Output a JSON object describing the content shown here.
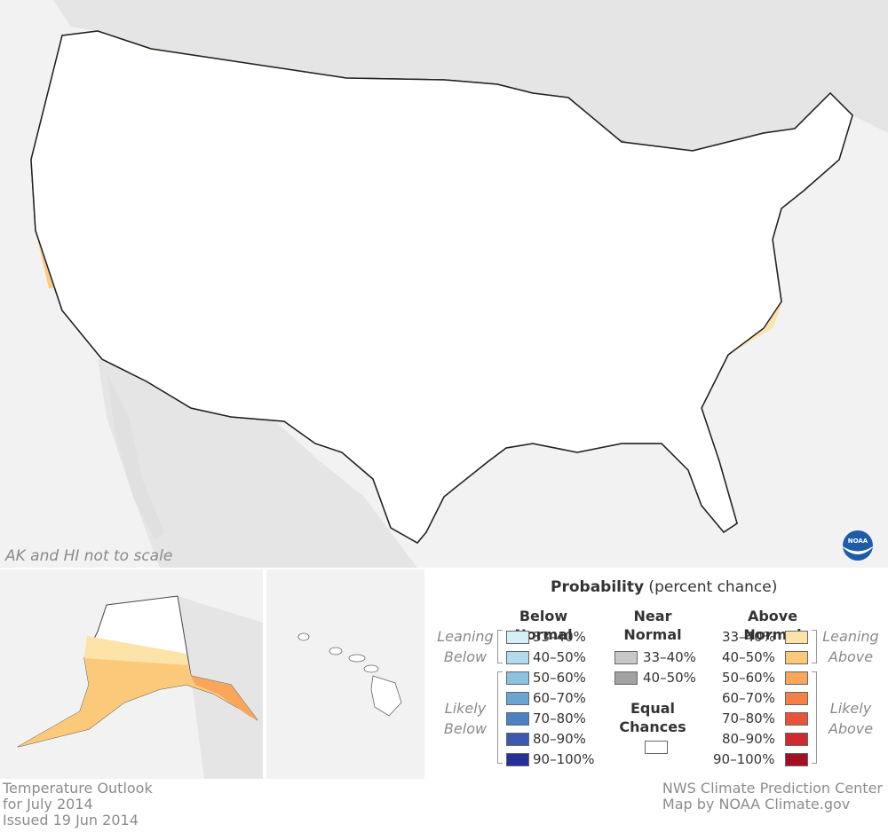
{
  "colors": {
    "background": "#f2f2f2",
    "land": "#e5e5e5",
    "equal_chances": "#ffffff",
    "below_33_40": "#d5eef8",
    "below_40_50": "#b2dced",
    "below_50_60": "#8ac2e0",
    "below_60_70": "#6aa4d1",
    "below_70_80": "#4d82c2",
    "below_80_90": "#3a5ab0",
    "below_90_100": "#27309a",
    "near_33_40": "#c8c8c8",
    "near_40_50": "#a2a2a2",
    "above_33_40": "#fde3a7",
    "above_40_50": "#fbc97a",
    "above_50_60": "#f9a55a",
    "above_60_70": "#f47f47",
    "above_70_80": "#e8533a",
    "above_80_90": "#cf2a2e",
    "above_90_100": "#a50f24"
  },
  "map": {
    "scale_note": "AK and HI not to scale"
  },
  "legend": {
    "title_bold": "Probability",
    "title_rest": " (percent chance)",
    "below": {
      "heading": "Below Normal",
      "leaning_label": [
        "Leaning",
        "Below"
      ],
      "likely_label": [
        "Likely",
        "Below"
      ],
      "items": [
        "33–40%",
        "40–50%",
        "50–60%",
        "60–70%",
        "70–80%",
        "80–90%",
        "90–100%"
      ]
    },
    "near": {
      "heading": [
        "Near",
        "Normal"
      ],
      "items": [
        "33–40%",
        "40–50%"
      ]
    },
    "equal": {
      "heading": [
        "Equal",
        "Chances"
      ]
    },
    "above": {
      "heading": "Above Normal",
      "leaning_label": [
        "Leaning",
        "Above"
      ],
      "likely_label": [
        "Likely",
        "Above"
      ],
      "items": [
        "33–40%",
        "40–50%",
        "50–60%",
        "60–70%",
        "70–80%",
        "80–90%",
        "90–100%"
      ]
    }
  },
  "footer": {
    "left": [
      "Temperature Outlook",
      "for July 2014",
      "Issued 19 Jun 2014"
    ],
    "right": [
      "NWS Climate Prediction Center",
      "Map by NOAA Climate.gov"
    ]
  },
  "logo": {
    "text": "NOAA"
  }
}
